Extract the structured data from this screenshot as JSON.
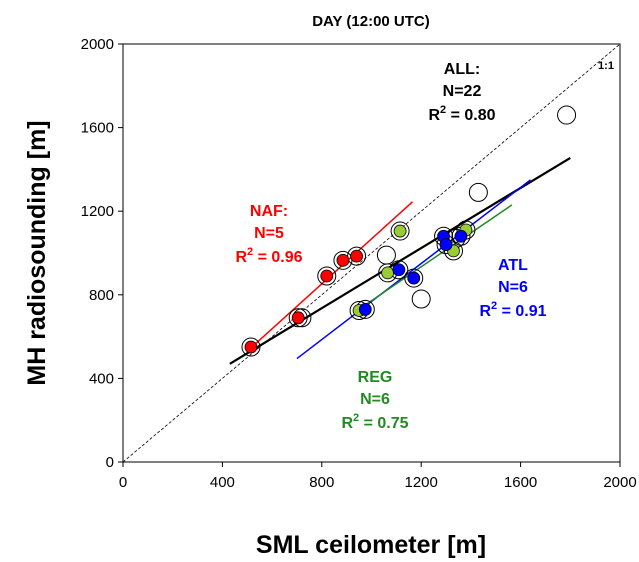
{
  "chart_data": {
    "type": "scatter",
    "title": "DAY (12:00 UTC)",
    "xlabel": "SML ceilometer [m]",
    "ylabel": "MH radiosounding [m]",
    "xlim": [
      0,
      2000
    ],
    "ylim": [
      0,
      2000
    ],
    "xticks": [
      0,
      400,
      800,
      1200,
      1600,
      2000
    ],
    "yticks": [
      0,
      400,
      800,
      1200,
      1600,
      2000
    ],
    "grid": false,
    "one_to_one_label": "1:1",
    "colors": {
      "all": "#000000",
      "naf": "#ff0000",
      "atl": "#0000ff",
      "reg": "#228b22",
      "reg_fill": "#9acd32"
    },
    "series": [
      {
        "key": "all",
        "points": [
          {
            "x": 515,
            "y": 550
          },
          {
            "x": 705,
            "y": 690
          },
          {
            "x": 720,
            "y": 690
          },
          {
            "x": 820,
            "y": 890
          },
          {
            "x": 885,
            "y": 965
          },
          {
            "x": 940,
            "y": 985
          },
          {
            "x": 950,
            "y": 725
          },
          {
            "x": 975,
            "y": 730
          },
          {
            "x": 1060,
            "y": 990
          },
          {
            "x": 1065,
            "y": 905
          },
          {
            "x": 1110,
            "y": 920
          },
          {
            "x": 1115,
            "y": 1105
          },
          {
            "x": 1170,
            "y": 880
          },
          {
            "x": 1200,
            "y": 780
          },
          {
            "x": 1290,
            "y": 1080
          },
          {
            "x": 1300,
            "y": 1040
          },
          {
            "x": 1330,
            "y": 1010
          },
          {
            "x": 1340,
            "y": 1070
          },
          {
            "x": 1360,
            "y": 1080
          },
          {
            "x": 1380,
            "y": 1110
          },
          {
            "x": 1430,
            "y": 1290
          },
          {
            "x": 1785,
            "y": 1660
          }
        ]
      },
      {
        "key": "naf",
        "points": [
          {
            "x": 515,
            "y": 550
          },
          {
            "x": 705,
            "y": 690
          },
          {
            "x": 820,
            "y": 890
          },
          {
            "x": 885,
            "y": 965
          },
          {
            "x": 940,
            "y": 985
          }
        ]
      },
      {
        "key": "reg",
        "points": [
          {
            "x": 950,
            "y": 725
          },
          {
            "x": 1065,
            "y": 905
          },
          {
            "x": 1115,
            "y": 1105
          },
          {
            "x": 1300,
            "y": 1040
          },
          {
            "x": 1330,
            "y": 1010
          },
          {
            "x": 1380,
            "y": 1110
          }
        ]
      },
      {
        "key": "atl",
        "points": [
          {
            "x": 975,
            "y": 730
          },
          {
            "x": 1110,
            "y": 920
          },
          {
            "x": 1170,
            "y": 880
          },
          {
            "x": 1290,
            "y": 1080
          },
          {
            "x": 1300,
            "y": 1040
          },
          {
            "x": 1360,
            "y": 1080
          }
        ]
      }
    ],
    "fit_lines": [
      {
        "key": "all",
        "x": [
          430,
          1800
        ],
        "y": [
          470,
          1455
        ]
      },
      {
        "key": "naf",
        "x": [
          500,
          1165
        ],
        "y": [
          530,
          1245
        ]
      },
      {
        "key": "atl",
        "x": [
          700,
          1640
        ],
        "y": [
          495,
          1350
        ]
      },
      {
        "key": "reg",
        "x": [
          930,
          1565
        ],
        "y": [
          715,
          1230
        ]
      }
    ],
    "annotations": [
      {
        "key": "all",
        "name": "ALL:",
        "n": "N=22",
        "r2_value": "= 0.80"
      },
      {
        "key": "naf",
        "name": "NAF:",
        "n": "N=5",
        "r2_value": "= 0.96"
      },
      {
        "key": "atl",
        "name": "ATL",
        "n": "N=6",
        "r2_value": "= 0.91"
      },
      {
        "key": "reg",
        "name": "REG",
        "n": "N=6",
        "r2_value": "= 0.75"
      }
    ]
  }
}
